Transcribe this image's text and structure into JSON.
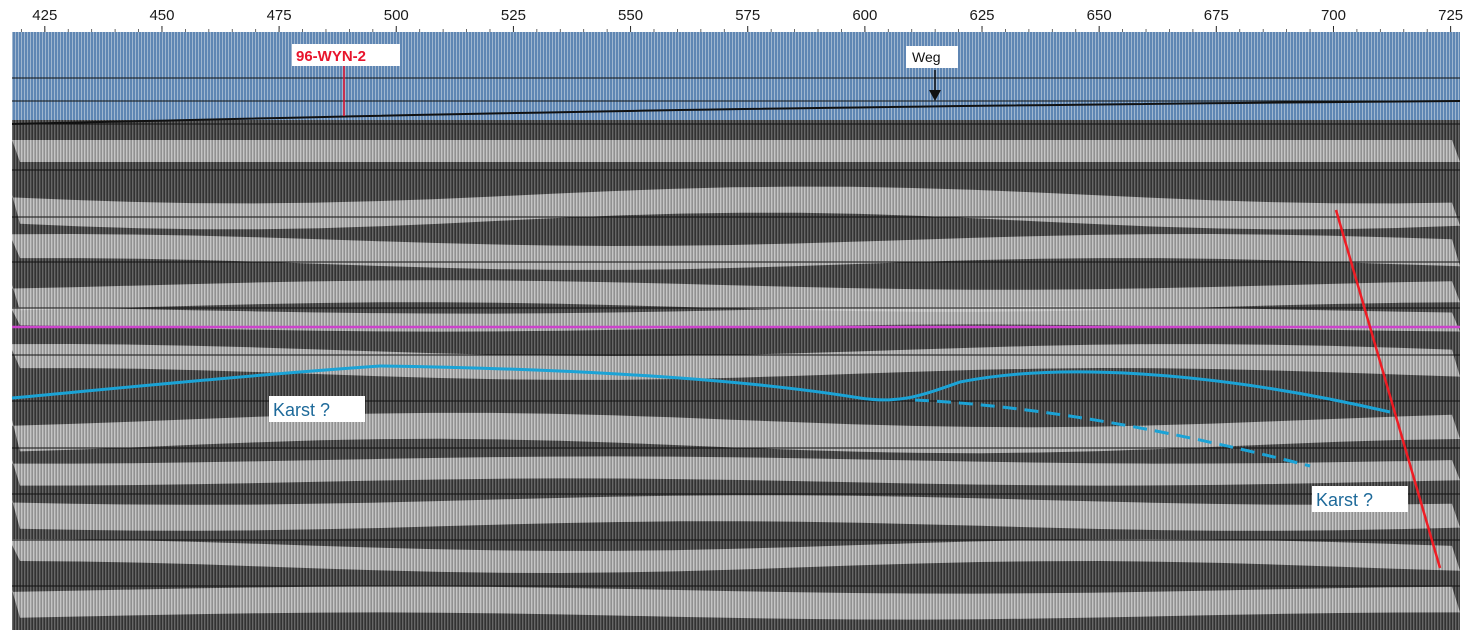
{
  "axis": {
    "ticks": [
      425,
      450,
      475,
      500,
      525,
      550,
      575,
      600,
      625,
      650,
      675,
      700,
      725
    ],
    "range": [
      418,
      727
    ]
  },
  "annotations": {
    "well": "96-WYN-2",
    "weg": "Weg",
    "karst_left": "Karst ?",
    "karst_right": "Karst ?"
  },
  "colors": {
    "water": "#6d8fb8",
    "reflector_bright": "#e9e9e9",
    "reflector_dark": "#2b2b2b",
    "horizon_magenta": "#cc44cc",
    "horizon_cyan": "#1ba3d6",
    "fault_red": "#ee1c24",
    "well_red": "#e8142c"
  }
}
